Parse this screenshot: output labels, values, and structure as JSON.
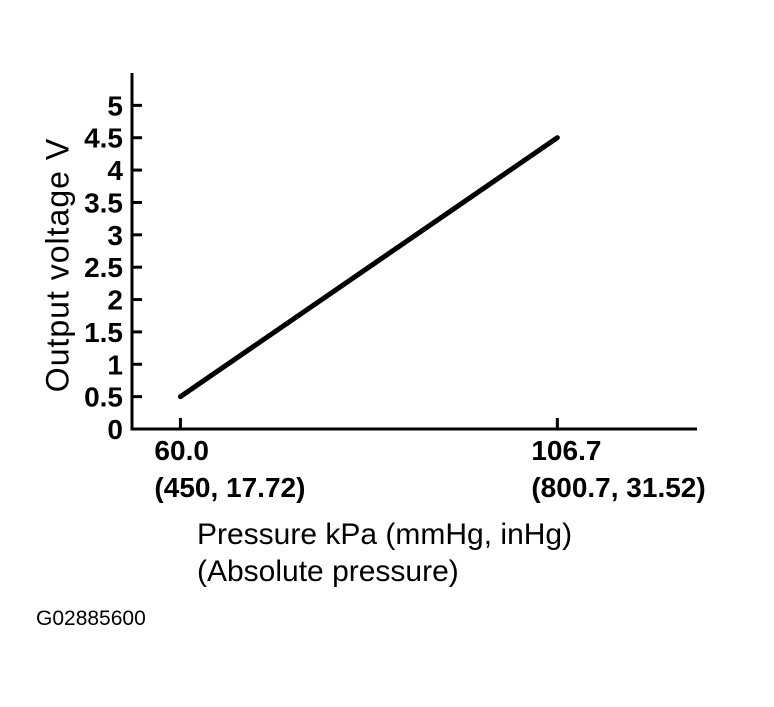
{
  "figure": {
    "code": "G02885600"
  },
  "colors": {
    "background": "#ffffff",
    "axis": "#000000",
    "line": "#000000",
    "text": "#000000"
  },
  "chart_data": {
    "type": "line",
    "title": "",
    "ylabel": "Output voltage V",
    "xlabel_lines": [
      "Pressure kPa (mmHg, inHg)",
      "(Absolute pressure)"
    ],
    "xlim": [
      54,
      124
    ],
    "ylim": [
      0,
      5.5
    ],
    "grid": false,
    "legend": "none",
    "y_ticks": [
      {
        "value": 0,
        "label": "0"
      },
      {
        "value": 0.5,
        "label": "0.5"
      },
      {
        "value": 1,
        "label": "1"
      },
      {
        "value": 1.5,
        "label": "1.5"
      },
      {
        "value": 2,
        "label": "2"
      },
      {
        "value": 2.5,
        "label": "2.5"
      },
      {
        "value": 3,
        "label": "3"
      },
      {
        "value": 3.5,
        "label": "3.5"
      },
      {
        "value": 4,
        "label": "4"
      },
      {
        "value": 4.5,
        "label": "4.5"
      },
      {
        "value": 5,
        "label": "5"
      }
    ],
    "x_ticks": [
      {
        "value": 60.0,
        "label": "60.0",
        "sublabel": "(450, 17.72)"
      },
      {
        "value": 106.7,
        "label": "106.7",
        "sublabel": "(800.7, 31.52)"
      }
    ],
    "series": [
      {
        "name": "output-voltage-vs-pressure",
        "points": [
          [
            60.0,
            0.5
          ],
          [
            106.7,
            4.5
          ]
        ]
      }
    ]
  }
}
